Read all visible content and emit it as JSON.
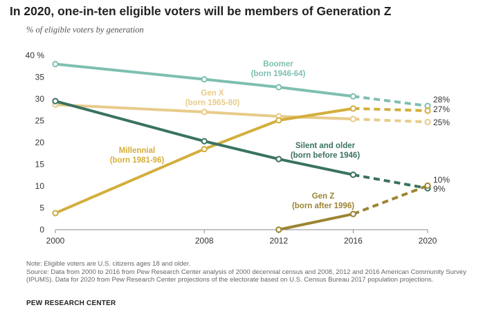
{
  "title": "In 2020, one-in-ten eligible voters will be members of Generation Z",
  "subtitle": "% of eligible voters by generation",
  "note": "Note: Eligible voters are U.S. citizens ages 18 and older.",
  "source": "Source: Data from 2000 to 2016 from Pew Research Center analysis of 2000 decennial census and 2008, 2012 and 2016 American Community Survey (IPUMS). Data for 2020 from Pew Research Center projections of the electorate based on U.S. Census Bureau 2017 population projections.",
  "brand": "PEW RESEARCH CENTER",
  "chart_data": {
    "type": "line",
    "x": [
      2000,
      2008,
      2012,
      2016,
      2020
    ],
    "xticks": [
      "2000",
      "2008",
      "2012",
      "2016",
      "2020"
    ],
    "yticks": [
      "0",
      "5",
      "10",
      "15",
      "20",
      "25",
      "30",
      "35",
      "40 %"
    ],
    "ylim": [
      0,
      40
    ],
    "xlim": [
      2000,
      2020
    ],
    "projected_from": 2016,
    "series": [
      {
        "name": "Boomer",
        "sub": "(born 1946-64)",
        "color": "#7ebfb0",
        "values": [
          38,
          34.5,
          32.7,
          30.6,
          28.4
        ],
        "end_label": "28%"
      },
      {
        "name": "Gen X",
        "sub": "(born 1965-80)",
        "color": "#e7cb8a",
        "values": [
          28.7,
          27.0,
          26.0,
          25.4,
          24.7
        ],
        "end_label": "25%"
      },
      {
        "name": "Millennial",
        "sub": "(born 1981-96)",
        "color": "#d3ae3c",
        "values": [
          3.8,
          18.5,
          25.1,
          27.8,
          27.3
        ],
        "end_label": "27%"
      },
      {
        "name": "Silent and older",
        "sub": "(born before 1946)",
        "color": "#3a7262",
        "values": [
          29.5,
          20.3,
          16.2,
          12.6,
          9.5
        ],
        "end_label": "9%"
      },
      {
        "name": "Gen Z",
        "sub": "(born after 1996)",
        "color": "#9c8432",
        "values": [
          null,
          null,
          0,
          3.6,
          10.1
        ],
        "end_label": "10%"
      }
    ]
  }
}
